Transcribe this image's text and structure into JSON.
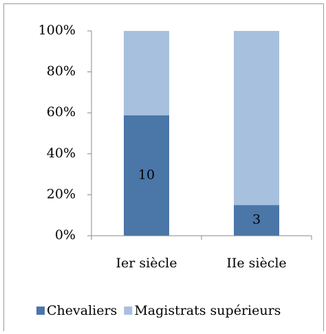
{
  "chart_data": {
    "type": "bar",
    "stack": "percent",
    "categories": [
      "Ier siècle",
      "IIe siècle"
    ],
    "series": [
      {
        "name": "Chevaliers",
        "color": "#4a76a8",
        "values": [
          10,
          3
        ],
        "show_labels": true
      },
      {
        "name": "Magistrats supérieurs",
        "color": "#a7c0de",
        "values": [
          7,
          17
        ],
        "show_labels": false
      }
    ],
    "ylim": [
      0,
      100
    ],
    "yticks": [
      {
        "value": 0,
        "label": "0%"
      },
      {
        "value": 20,
        "label": "20%"
      },
      {
        "value": 40,
        "label": "40%"
      },
      {
        "value": 60,
        "label": "60%"
      },
      {
        "value": 80,
        "label": "80%"
      },
      {
        "value": 100,
        "label": "100%"
      }
    ],
    "grid": false,
    "legend": "bottom"
  }
}
